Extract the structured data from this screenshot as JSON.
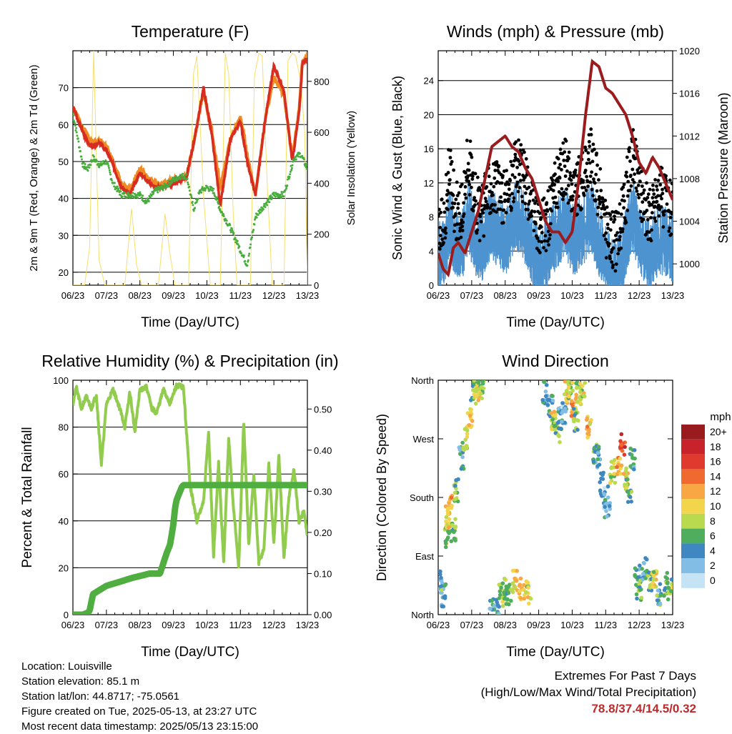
{
  "colors": {
    "temp_2m": "#d62d20",
    "temp_9m": "#f08a24",
    "dewpoint": "#49ad3e",
    "insolation": "#f7df6b",
    "wind": "#4d93d0",
    "gust": "#000000",
    "pressure": "#9b1c1f",
    "rh": "#92cc4e",
    "precip": "#4fae3f",
    "extremes": "#c0282a"
  },
  "chart_data": [
    {
      "type": "line",
      "title": "Temperature (F)",
      "xlabel": "Time (Day/UTC)",
      "ylabel": "2m & 9m T (Red, Orange) & 2m Td (Green)",
      "y2label": "Solar Insolation (Yellow)",
      "x_ticks": [
        "06/23",
        "07/23",
        "08/23",
        "09/23",
        "10/23",
        "11/23",
        "12/23",
        "13/23"
      ],
      "xlim": [
        0,
        7
      ],
      "ylim": [
        16.5,
        80
      ],
      "y_ticks": [
        20,
        30,
        40,
        50,
        60,
        70
      ],
      "y2lim": [
        0,
        920
      ],
      "y2_ticks": [
        0,
        200,
        400,
        600,
        800
      ],
      "grid": true,
      "series": [
        {
          "key": "t9m",
          "axis": "y",
          "style": "thick",
          "x": [
            0,
            0.15,
            0.3,
            0.45,
            0.6,
            0.8,
            1.0,
            1.2,
            1.45,
            1.7,
            2.0,
            2.2,
            2.45,
            2.7,
            3.0,
            3.2,
            3.4,
            3.65,
            3.9,
            4.15,
            4.4,
            4.7,
            5.0,
            5.2,
            5.45,
            5.75,
            6.0,
            6.3,
            6.55,
            6.75,
            6.85,
            6.95,
            7.0
          ],
          "y": [
            65,
            62,
            59,
            57,
            55,
            56,
            54,
            50,
            44,
            42,
            48,
            46,
            44,
            44,
            45,
            45,
            46,
            57,
            69,
            58,
            43,
            56,
            62,
            52,
            41,
            62,
            73,
            68,
            51,
            64,
            77,
            78,
            79
          ]
        },
        {
          "key": "t2m",
          "axis": "y",
          "style": "thick",
          "x": [
            0,
            0.15,
            0.3,
            0.45,
            0.6,
            0.8,
            1.0,
            1.2,
            1.45,
            1.7,
            2.0,
            2.2,
            2.45,
            2.7,
            3.0,
            3.2,
            3.4,
            3.65,
            3.9,
            4.15,
            4.4,
            4.7,
            5.0,
            5.2,
            5.45,
            5.75,
            6.0,
            6.3,
            6.55,
            6.75,
            6.85,
            6.95,
            7.0
          ],
          "y": [
            65,
            61,
            58,
            55,
            54,
            55,
            53,
            49,
            43,
            41,
            47,
            45,
            43,
            43,
            44,
            45,
            46,
            57,
            70,
            57,
            38,
            56,
            61,
            50,
            41,
            62,
            76,
            69,
            50,
            63,
            76,
            78,
            77
          ]
        },
        {
          "key": "td",
          "axis": "y",
          "style": "dotted",
          "x": [
            0,
            0.15,
            0.3,
            0.45,
            0.6,
            0.8,
            1.0,
            1.2,
            1.45,
            1.7,
            2.0,
            2.2,
            2.45,
            2.7,
            3.0,
            3.2,
            3.4,
            3.6,
            3.8,
            4.0,
            4.2,
            4.4,
            4.7,
            4.95,
            5.2,
            5.45,
            5.7,
            6.0,
            6.3,
            6.6,
            6.8,
            7.0
          ],
          "y": [
            63,
            56,
            49,
            48,
            51,
            49,
            50,
            44,
            41,
            41,
            41,
            39,
            42,
            43,
            45,
            46,
            46,
            37,
            42,
            43,
            42,
            37,
            32,
            27,
            22,
            35,
            38,
            41,
            41,
            51,
            52,
            48
          ]
        },
        {
          "key": "sun",
          "axis": "y2",
          "style": "thin",
          "x": [
            0,
            0.2,
            0.35,
            0.5,
            0.62,
            0.78,
            0.95,
            1.25,
            1.55,
            1.75,
            1.9,
            2.05,
            2.25,
            2.55,
            2.75,
            2.9,
            3.05,
            3.25,
            3.45,
            3.6,
            3.7,
            3.9,
            4.1,
            4.25,
            4.4,
            4.55,
            4.65,
            4.78,
            4.9,
            5.1,
            5.3,
            5.42,
            5.55,
            5.65,
            5.8,
            5.95,
            6.1,
            6.3,
            6.42,
            6.55,
            6.65,
            6.8,
            6.92,
            7.0
          ],
          "y": [
            0,
            0,
            0,
            150,
            920,
            100,
            0,
            0,
            0,
            300,
            80,
            0,
            0,
            0,
            280,
            120,
            0,
            0,
            0,
            830,
            900,
            350,
            0,
            0,
            0,
            910,
            830,
            300,
            0,
            0,
            0,
            820,
            910,
            900,
            400,
            0,
            0,
            0,
            880,
            910,
            900,
            800,
            600,
            0
          ]
        }
      ]
    },
    {
      "type": "scatter",
      "title": "Winds (mph) & Pressure (mb)",
      "xlabel": "Time (Day/UTC)",
      "ylabel": "Sonic Wind & Gust (Blue, Black)",
      "y2label": "Station Pressure (Maroon)",
      "x_ticks": [
        "06/23",
        "07/23",
        "08/23",
        "09/23",
        "10/23",
        "11/23",
        "12/23",
        "13/23"
      ],
      "xlim": [
        0,
        7
      ],
      "ylim": [
        0,
        27.5
      ],
      "y_ticks": [
        0,
        4,
        8,
        12,
        16,
        20,
        24
      ],
      "y2lim": [
        998,
        1020
      ],
      "y2_ticks": [
        1000,
        1004,
        1008,
        1012,
        1016,
        1020
      ],
      "grid": true,
      "series": [
        {
          "key": "wind",
          "axis": "y",
          "x": [
            0,
            0.2,
            0.35,
            0.5,
            0.7,
            0.9,
            1.1,
            1.3,
            1.55,
            1.8,
            2.05,
            2.3,
            2.55,
            2.8,
            3.05,
            3.3,
            3.55,
            3.8,
            4.05,
            4.3,
            4.55,
            4.8,
            5.05,
            5.3,
            5.55,
            5.8,
            6.05,
            6.3,
            6.55,
            6.8,
            7.0
          ],
          "y": [
            4,
            5,
            8,
            6,
            5,
            9,
            6,
            5,
            8,
            7,
            6,
            9,
            8,
            5,
            3,
            5,
            7,
            8,
            6,
            7,
            9,
            6,
            3,
            2,
            5,
            9,
            6,
            4,
            6,
            6,
            5
          ]
        },
        {
          "key": "gust",
          "axis": "y",
          "x": [
            0,
            0.2,
            0.35,
            0.5,
            0.7,
            0.9,
            1.1,
            1.3,
            1.55,
            1.8,
            2.05,
            2.3,
            2.55,
            2.8,
            3.05,
            3.3,
            3.55,
            3.8,
            4.05,
            4.3,
            4.55,
            4.8,
            5.05,
            5.3,
            5.55,
            5.8,
            6.05,
            6.3,
            6.55,
            6.8,
            7.0
          ],
          "y": [
            6,
            8,
            14,
            9,
            8,
            15,
            10,
            8,
            12,
            11,
            10,
            14,
            13,
            9,
            6,
            8,
            12,
            14,
            11,
            12,
            15,
            11,
            6,
            5,
            9,
            16,
            11,
            8,
            11,
            10,
            9
          ]
        },
        {
          "key": "pressure",
          "axis": "y2",
          "x": [
            0,
            0.15,
            0.3,
            0.45,
            0.6,
            0.8,
            1.0,
            1.2,
            1.4,
            1.6,
            1.8,
            2.0,
            2.2,
            2.4,
            2.6,
            2.8,
            3.0,
            3.2,
            3.4,
            3.6,
            3.8,
            4.0,
            4.2,
            4.4,
            4.6,
            4.8,
            5.0,
            5.2,
            5.4,
            5.6,
            5.8,
            6.0,
            6.2,
            6.4,
            6.6,
            6.8,
            7.0
          ],
          "y": [
            1001,
            999.5,
            999,
            1001.5,
            1002,
            1001,
            1003,
            1005,
            1008,
            1011,
            1011.5,
            1012,
            1011,
            1010.5,
            1009,
            1008,
            1006,
            1004,
            1003,
            1003,
            1002,
            1003,
            1008,
            1014,
            1019,
            1018.5,
            1016.5,
            1016,
            1015,
            1014,
            1012,
            1009.5,
            1008.5,
            1010,
            1009,
            1007.5,
            1006
          ]
        }
      ]
    },
    {
      "type": "line",
      "title": "Relative Humidity (%) & Precipitation (in)",
      "xlabel": "Time (Day/UTC)",
      "ylabel": "Percent & Total Rainfall",
      "x_ticks": [
        "06/23",
        "07/23",
        "08/23",
        "09/23",
        "10/23",
        "11/23",
        "12/23",
        "13/23"
      ],
      "xlim": [
        0,
        7
      ],
      "ylim": [
        0,
        100
      ],
      "y_ticks": [
        0,
        20,
        40,
        60,
        80,
        100
      ],
      "y2lim": [
        0,
        0.57
      ],
      "y2_ticks": [
        "0.00",
        "0.10",
        "0.20",
        "0.30",
        "0.40",
        "0.50"
      ],
      "grid": true,
      "series": [
        {
          "key": "rh",
          "axis": "y",
          "x": [
            0,
            0.1,
            0.25,
            0.4,
            0.55,
            0.7,
            0.85,
            1.0,
            1.2,
            1.4,
            1.55,
            1.7,
            1.85,
            2.0,
            2.2,
            2.35,
            2.5,
            2.7,
            2.9,
            3.1,
            3.3,
            3.5,
            3.7,
            3.9,
            4.05,
            4.2,
            4.35,
            4.5,
            4.65,
            4.8,
            4.95,
            5.1,
            5.25,
            5.4,
            5.55,
            5.7,
            5.85,
            6.0,
            6.15,
            6.3,
            6.45,
            6.6,
            6.75,
            6.9,
            7.0
          ],
          "y": [
            90,
            97,
            88,
            93,
            88,
            94,
            64,
            90,
            96,
            88,
            80,
            95,
            78,
            96,
            97,
            88,
            86,
            96,
            90,
            98,
            97,
            55,
            40,
            48,
            78,
            25,
            65,
            22,
            75,
            45,
            20,
            82,
            30,
            60,
            22,
            28,
            64,
            30,
            68,
            24,
            50,
            62,
            40,
            44,
            33
          ]
        },
        {
          "key": "precip",
          "axis": "y2",
          "x": [
            0,
            0.3,
            0.45,
            0.5,
            0.6,
            0.8,
            1.0,
            1.4,
            1.8,
            2.3,
            2.6,
            2.8,
            2.9,
            3.0,
            3.05,
            3.1,
            3.15,
            3.2,
            3.25,
            3.3,
            3.35,
            7.0
          ],
          "y": [
            0,
            0,
            0.005,
            0.01,
            0.05,
            0.06,
            0.07,
            0.08,
            0.09,
            0.1,
            0.1,
            0.15,
            0.17,
            0.22,
            0.26,
            0.28,
            0.29,
            0.3,
            0.31,
            0.315,
            0.315,
            0.315
          ]
        }
      ]
    },
    {
      "type": "scatter",
      "title": "Wind Direction",
      "xlabel": "Time (Day/UTC)",
      "ylabel": "Direction (Colored By Speed)",
      "x_ticks": [
        "06/23",
        "07/23",
        "08/23",
        "09/23",
        "10/23",
        "11/23",
        "12/23",
        "13/23"
      ],
      "xlim": [
        0,
        7
      ],
      "ylim": [
        0,
        360
      ],
      "y_ticks": [
        "North",
        "East",
        "South",
        "West",
        "North"
      ],
      "legend_title": "mph",
      "legend": [
        "20+",
        "18",
        "16",
        "14",
        "12",
        "10",
        "8",
        "6",
        "4",
        "2",
        "0"
      ],
      "legend_colors": [
        "#9a1b1d",
        "#c8232a",
        "#e03a2f",
        "#f0692e",
        "#f9a645",
        "#f2d54c",
        "#b9d94f",
        "#4fae5d",
        "#3f87c0",
        "#82bde6",
        "#c4e4f6"
      ],
      "series": [
        {
          "key": "direction",
          "x": [
            0.05,
            0.15,
            0.25,
            0.3,
            0.35,
            0.45,
            0.55,
            0.7,
            0.8,
            0.95,
            1.05,
            1.15,
            1.2,
            1.25,
            1.3,
            1.6,
            1.75,
            1.9,
            2.0,
            2.1,
            2.3,
            2.5,
            2.7,
            3.2,
            3.35,
            3.45,
            3.55,
            3.65,
            3.75,
            3.85,
            3.95,
            4.05,
            4.1,
            4.2,
            4.3,
            4.5,
            4.7,
            4.75,
            4.9,
            5.0,
            5.05,
            5.2,
            5.4,
            5.5,
            5.6,
            5.7,
            5.8,
            5.95,
            6.0,
            6.15,
            6.3,
            6.45,
            6.6,
            6.8,
            6.9
          ],
          "y": [
            50,
            30,
            120,
            150,
            170,
            130,
            190,
            240,
            270,
            300,
            340,
            350,
            345,
            355,
            350,
            10,
            5,
            30,
            40,
            30,
            50,
            40,
            35,
            340,
            320,
            300,
            280,
            300,
            310,
            340,
            350,
            320,
            300,
            340,
            350,
            290,
            250,
            240,
            200,
            180,
            160,
            220,
            230,
            260,
            210,
            190,
            240,
            60,
            40,
            70,
            50,
            60,
            30,
            40,
            50
          ],
          "speed": [
            3,
            5,
            8,
            10,
            12,
            7,
            6,
            4,
            8,
            11,
            6,
            9,
            10,
            7,
            8,
            5,
            3,
            8,
            7,
            6,
            10,
            12,
            9,
            3,
            4,
            9,
            7,
            5,
            3,
            10,
            8,
            12,
            6,
            7,
            9,
            11,
            5,
            4,
            3,
            2,
            4,
            8,
            12,
            15,
            10,
            6,
            4,
            5,
            6,
            4,
            7,
            9,
            5,
            6,
            7
          ]
        }
      ]
    }
  ],
  "info": {
    "location": "Location: Louisville",
    "elevation": "Station elevation: 85.1 m",
    "latlon": "Station lat/lon: 44.8717; -75.0561",
    "created": "Figure created on Tue, 2025-05-13, at 23:27 UTC",
    "recent": "Most recent data timestamp: 2025/05/13 23:15:00"
  },
  "extremes": {
    "title": "Extremes For Past 7 Days",
    "subtitle": "(High/Low/Max Wind/Total Precipitation)",
    "values": "78.8/37.4/14.5/0.32"
  }
}
